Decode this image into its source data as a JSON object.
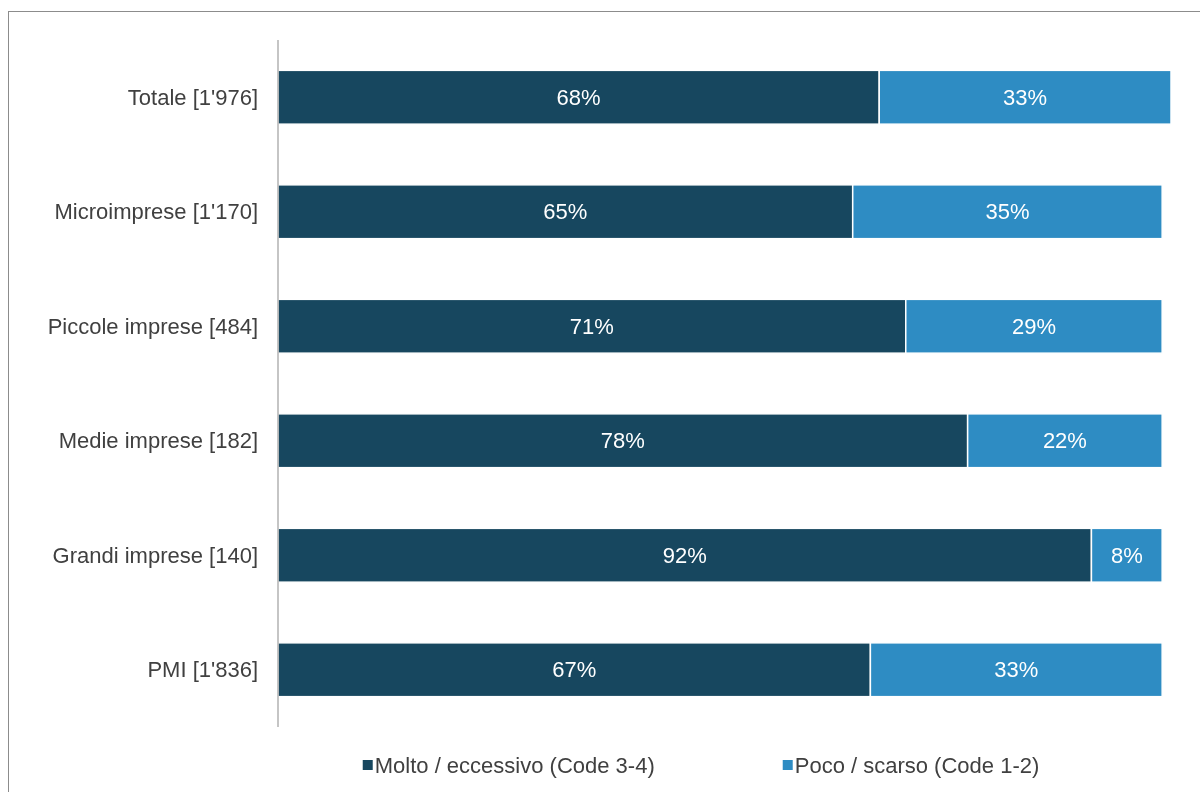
{
  "chart_data": {
    "type": "bar",
    "orientation": "horizontal",
    "stacked": true,
    "categories": [
      "Totale [1'976]",
      "Microimprese [1'170]",
      "Piccole imprese [484]",
      "Medie imprese [182]",
      "Grandi imprese [140]",
      "PMI [1'836]"
    ],
    "series": [
      {
        "name": "Molto / eccessivo (Code 3-4)",
        "color": "#17475f",
        "values": [
          68,
          65,
          71,
          78,
          92,
          67
        ],
        "value_labels": [
          "68%",
          "65%",
          "71%",
          "78%",
          "92%",
          "67%"
        ]
      },
      {
        "name": "Poco / scarso (Code 1-2)",
        "color": "#2e8cc3",
        "values": [
          33,
          35,
          29,
          22,
          8,
          33
        ],
        "value_labels": [
          "33%",
          "35%",
          "29%",
          "22%",
          "8%",
          "33%"
        ]
      }
    ],
    "xlim": [
      0,
      101
    ],
    "legend": "bottom",
    "tick_labels": "y"
  }
}
